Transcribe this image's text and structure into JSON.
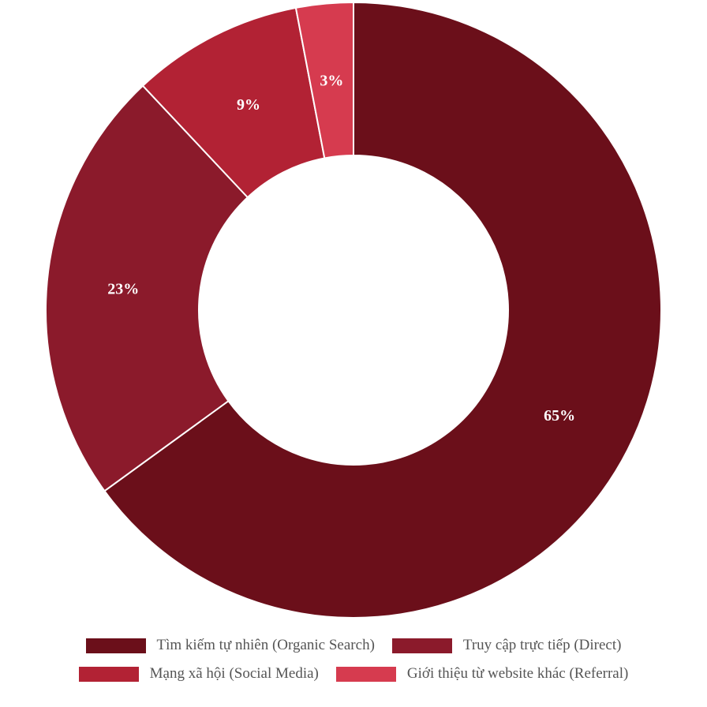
{
  "chart_data": {
    "type": "pie",
    "donut": true,
    "start": "top, clockwise",
    "legend_position": "bottom",
    "categories": [
      "Tìm kiếm tự nhiên (Organic Search)",
      "Truy cập trực tiếp (Direct)",
      "Mạng xã hội (Social Media)",
      "Giới thiệu từ website khác (Referral)"
    ],
    "values": [
      65,
      23,
      9,
      3
    ],
    "data_labels": [
      "65%",
      "23%",
      "9%",
      "3%"
    ],
    "colors": [
      "#6b0f1a",
      "#8b1a2b",
      "#b22234",
      "#d63b4f"
    ]
  }
}
